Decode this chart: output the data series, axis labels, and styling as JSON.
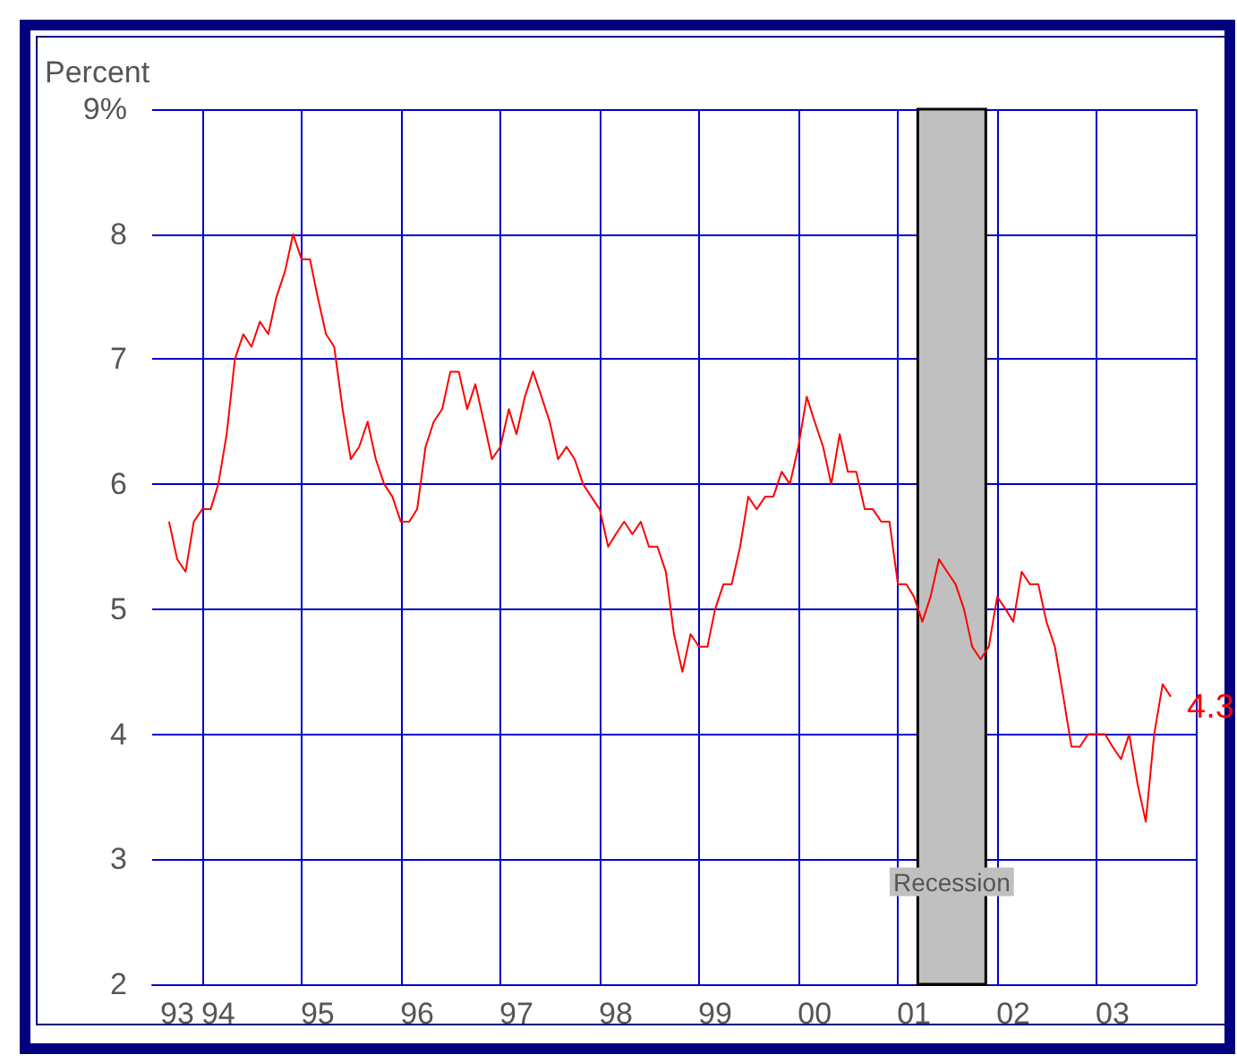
{
  "chart_data": {
    "type": "line",
    "ylabel": "Percent",
    "x": [
      "1993-09",
      "1993-10",
      "1993-11",
      "1993-12",
      "1994-01",
      "1994-02",
      "1994-03",
      "1994-04",
      "1994-05",
      "1994-06",
      "1994-07",
      "1994-08",
      "1994-09",
      "1994-10",
      "1994-11",
      "1994-12",
      "1995-01",
      "1995-02",
      "1995-03",
      "1995-04",
      "1995-05",
      "1995-06",
      "1995-07",
      "1995-08",
      "1995-09",
      "1995-10",
      "1995-11",
      "1995-12",
      "1996-01",
      "1996-02",
      "1996-03",
      "1996-04",
      "1996-05",
      "1996-06",
      "1996-07",
      "1996-08",
      "1996-09",
      "1996-10",
      "1996-11",
      "1996-12",
      "1997-01",
      "1997-02",
      "1997-03",
      "1997-04",
      "1997-05",
      "1997-06",
      "1997-07",
      "1997-08",
      "1997-09",
      "1997-10",
      "1997-11",
      "1997-12",
      "1998-01",
      "1998-02",
      "1998-03",
      "1998-04",
      "1998-05",
      "1998-06",
      "1998-07",
      "1998-08",
      "1998-09",
      "1998-10",
      "1998-11",
      "1998-12",
      "1999-01",
      "1999-02",
      "1999-03",
      "1999-04",
      "1999-05",
      "1999-06",
      "1999-07",
      "1999-08",
      "1999-09",
      "1999-10",
      "1999-11",
      "1999-12",
      "2000-01",
      "2000-02",
      "2000-03",
      "2000-04",
      "2000-05",
      "2000-06",
      "2000-07",
      "2000-08",
      "2000-09",
      "2000-10",
      "2000-11",
      "2000-12",
      "2001-01",
      "2001-02",
      "2001-03",
      "2001-04",
      "2001-05",
      "2001-06",
      "2001-07",
      "2001-08",
      "2001-09",
      "2001-10",
      "2001-11",
      "2001-12",
      "2002-01",
      "2002-02",
      "2002-03",
      "2002-04",
      "2002-05",
      "2002-06",
      "2002-07",
      "2002-08",
      "2002-09",
      "2002-10",
      "2002-11",
      "2002-12",
      "2003-01",
      "2003-02",
      "2003-03",
      "2003-04",
      "2003-05",
      "2003-06",
      "2003-07",
      "2003-08",
      "2003-09",
      "2003-10"
    ],
    "series": [
      {
        "color": "#ff0000",
        "values": [
          5.7,
          5.4,
          5.3,
          5.7,
          5.8,
          5.8,
          6.0,
          6.4,
          7.0,
          7.2,
          7.1,
          7.3,
          7.2,
          7.5,
          7.7,
          8.0,
          7.8,
          7.8,
          7.5,
          7.2,
          7.1,
          6.6,
          6.2,
          6.3,
          6.5,
          6.2,
          6.0,
          5.9,
          5.7,
          5.7,
          5.8,
          6.3,
          6.5,
          6.6,
          6.9,
          6.9,
          6.6,
          6.8,
          6.5,
          6.2,
          6.3,
          6.6,
          6.4,
          6.7,
          6.9,
          6.7,
          6.5,
          6.2,
          6.3,
          6.2,
          6.0,
          5.9,
          5.8,
          5.5,
          5.6,
          5.7,
          5.6,
          5.7,
          5.5,
          5.5,
          5.3,
          4.8,
          4.5,
          4.8,
          4.7,
          4.7,
          5.0,
          5.2,
          5.2,
          5.5,
          5.9,
          5.8,
          5.9,
          5.9,
          6.1,
          6.0,
          6.3,
          6.7,
          6.5,
          6.3,
          6.0,
          6.4,
          6.1,
          6.1,
          5.8,
          5.8,
          5.7,
          5.7,
          5.2,
          5.2,
          5.1,
          4.9,
          5.1,
          5.4,
          5.3,
          5.2,
          5.0,
          4.7,
          4.6,
          4.7,
          5.1,
          5.0,
          4.9,
          5.3,
          5.2,
          5.2,
          4.9,
          4.7,
          4.3,
          3.9,
          3.9,
          4.0,
          4.0,
          4.0,
          3.9,
          3.8,
          4.0,
          3.6,
          3.3,
          4.0,
          4.4,
          4.3
        ]
      }
    ],
    "xlim": [
      "1993-07",
      "2004-01"
    ],
    "xticks": [
      {
        "value": "1993-10",
        "label": "93"
      },
      {
        "value": "1994",
        "label": null
      },
      {
        "value": "1994-03",
        "label": "94"
      },
      {
        "value": "1995",
        "label": null
      },
      {
        "value": "1995-03",
        "label": "95"
      },
      {
        "value": "1996",
        "label": null
      },
      {
        "value": "1996-03",
        "label": "96"
      },
      {
        "value": "1997",
        "label": null
      },
      {
        "value": "1997-03",
        "label": "97"
      },
      {
        "value": "1998",
        "label": null
      },
      {
        "value": "1998-03",
        "label": "98"
      },
      {
        "value": "1999",
        "label": null
      },
      {
        "value": "1999-03",
        "label": "99"
      },
      {
        "value": "2000",
        "label": null
      },
      {
        "value": "2000-03",
        "label": "00"
      },
      {
        "value": "2001",
        "label": null
      },
      {
        "value": "2001-03",
        "label": "01"
      },
      {
        "value": "2002",
        "label": null
      },
      {
        "value": "2002-03",
        "label": "02"
      },
      {
        "value": "2003",
        "label": null
      },
      {
        "value": "2003-03",
        "label": "03"
      },
      {
        "value": "2004",
        "label": null
      }
    ],
    "ylim": [
      2,
      9
    ],
    "yticks": [
      2,
      3,
      4,
      5,
      6,
      7,
      8,
      {
        "value": 9,
        "label": "9%"
      }
    ],
    "grid": true,
    "bands": [
      {
        "axis": "x",
        "from": "2001-03-15",
        "to": "2001-11-20",
        "label": "Recession",
        "color": "#c0c0c0"
      }
    ],
    "annotations": [
      {
        "text": "4.3",
        "x": "2003-10",
        "y": 4.3
      }
    ]
  }
}
